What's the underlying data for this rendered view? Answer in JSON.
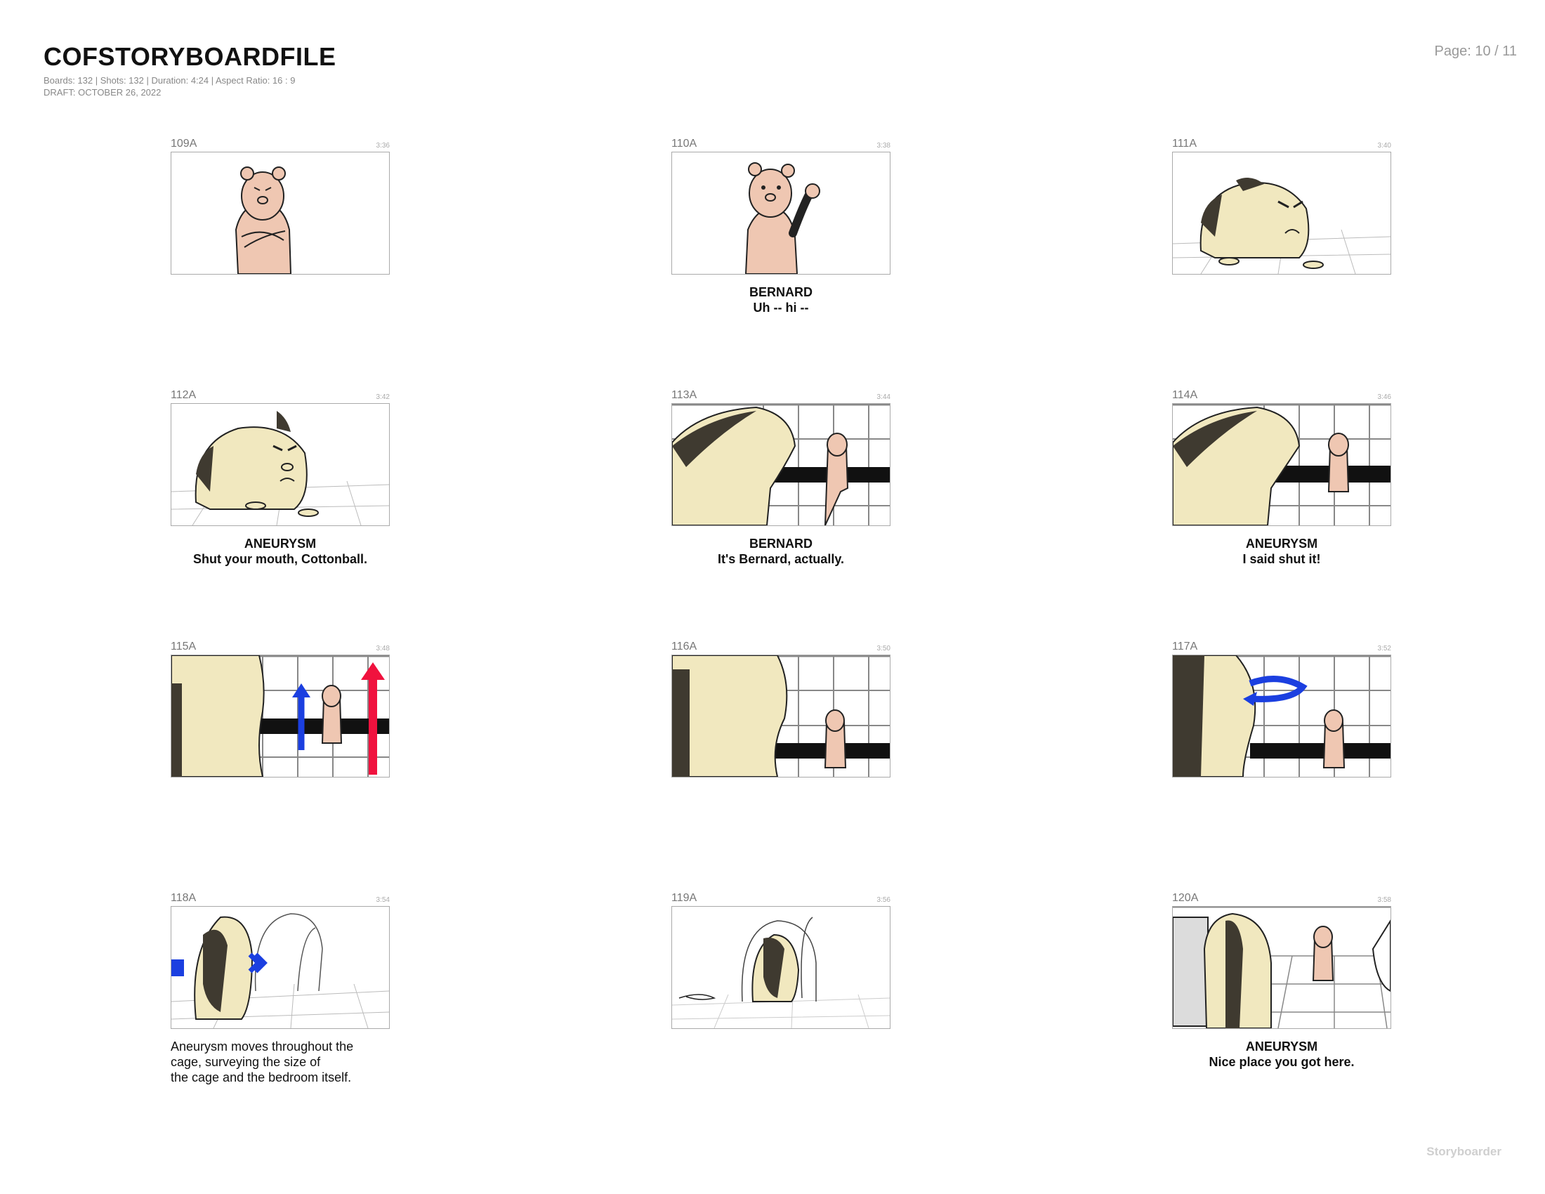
{
  "header": {
    "title": "COFSTORYBOARDFILE",
    "meta_line": "Boards: 132  |  Shots: 132  |  Duration: 4:24  |  Aspect Ratio: 16 : 9",
    "draft": "DRAFT: OCTOBER 26, 2022",
    "page": "Page: 10 / 11"
  },
  "footer": {
    "brand": "Storyboarder"
  },
  "colors": {
    "bernard": "#efc7b2",
    "aneurysm": "#f1e8bf",
    "dark_fur": "#3f3a30",
    "arrow_blue": "#1b3fe0",
    "arrow_red": "#f0123e"
  },
  "boards": [
    {
      "number": "109A",
      "time": "3:36",
      "character": "",
      "dialogue": "",
      "action": ""
    },
    {
      "number": "110A",
      "time": "3:38",
      "character": "BERNARD",
      "dialogue": "Uh -- hi --",
      "action": ""
    },
    {
      "number": "111A",
      "time": "3:40",
      "character": "",
      "dialogue": "",
      "action": ""
    },
    {
      "number": "112A",
      "time": "3:42",
      "character": "ANEURYSM",
      "dialogue": "Shut your mouth, Cottonball.",
      "action": ""
    },
    {
      "number": "113A",
      "time": "3:44",
      "character": "BERNARD",
      "dialogue": "It's Bernard, actually.",
      "action": ""
    },
    {
      "number": "114A",
      "time": "3:46",
      "character": "ANEURYSM",
      "dialogue": "I said shut it!",
      "action": ""
    },
    {
      "number": "115A",
      "time": "3:48",
      "character": "",
      "dialogue": "",
      "action": ""
    },
    {
      "number": "116A",
      "time": "3:50",
      "character": "",
      "dialogue": "",
      "action": ""
    },
    {
      "number": "117A",
      "time": "3:52",
      "character": "",
      "dialogue": "",
      "action": ""
    },
    {
      "number": "118A",
      "time": "3:54",
      "character": "",
      "dialogue": "",
      "action": "Aneurysm moves throughout the\ncage, surveying the size of\nthe cage and the bedroom itself."
    },
    {
      "number": "119A",
      "time": "3:56",
      "character": "",
      "dialogue": "",
      "action": ""
    },
    {
      "number": "120A",
      "time": "3:58",
      "character": "ANEURYSM",
      "dialogue": "Nice place you got here.",
      "action": ""
    }
  ]
}
